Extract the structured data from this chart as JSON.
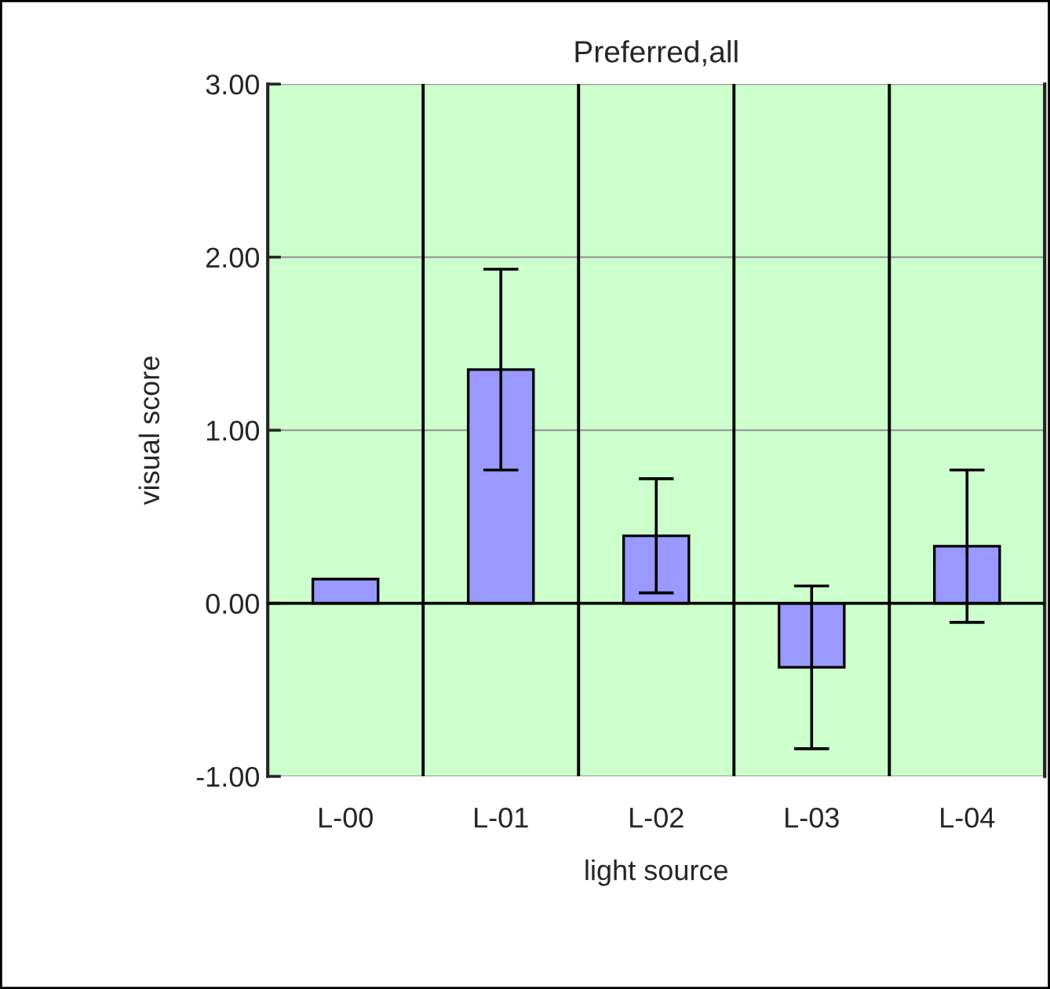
{
  "chart_data": {
    "type": "bar",
    "title": "Preferred,all",
    "xlabel": "light source",
    "ylabel": "visual score",
    "categories": [
      "L-00",
      "L-01",
      "L-02",
      "L-03",
      "L-04"
    ],
    "values": [
      0.14,
      1.35,
      0.39,
      -0.37,
      0.33
    ],
    "errors": [
      null,
      0.58,
      0.33,
      0.47,
      0.44
    ],
    "color": "#9999ff",
    "ylim": [
      -1,
      3
    ],
    "yticks": [
      {
        "value": -1,
        "label": "-1.00"
      },
      {
        "value": 0,
        "label": "0.00"
      },
      {
        "value": 1,
        "label": "1.00"
      },
      {
        "value": 2,
        "label": "2.00"
      },
      {
        "value": 3,
        "label": "3.00"
      }
    ],
    "grid": true
  }
}
